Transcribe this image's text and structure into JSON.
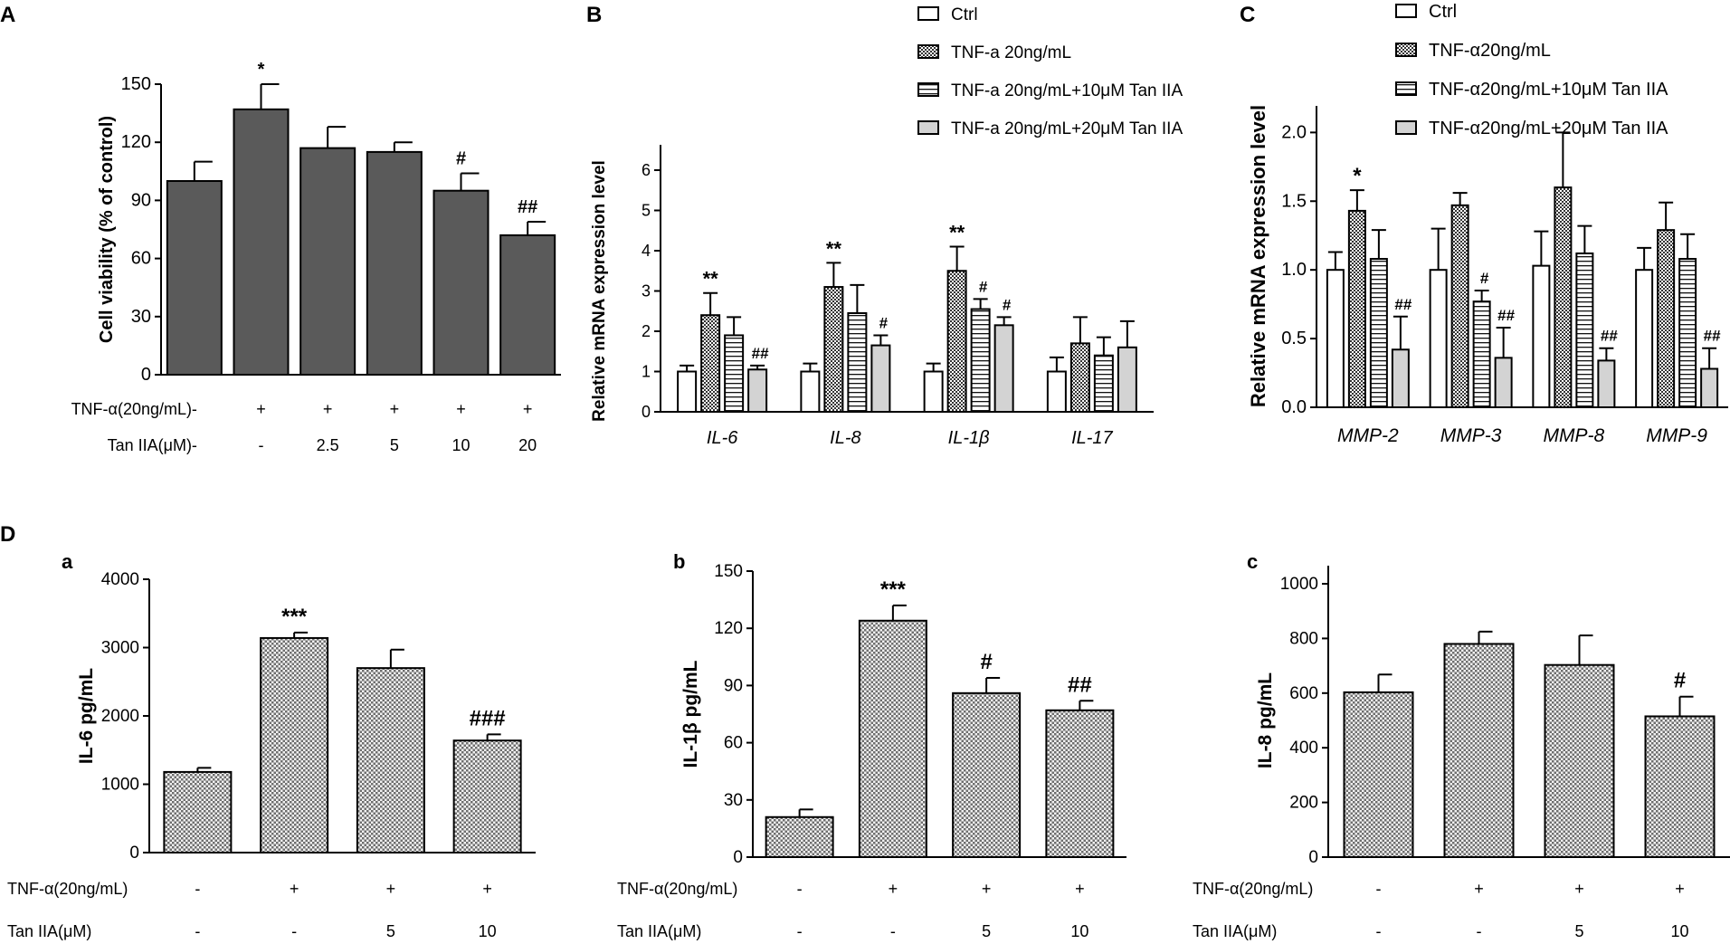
{
  "panel_labels": {
    "A": "A",
    "B": "B",
    "C": "C",
    "D": "D",
    "Da": "a",
    "Db": "b",
    "Dc": "c"
  },
  "colors": {
    "dark_bar": "#5a5a5a",
    "light_bar": "#d3d3d3",
    "axis": "#000000"
  },
  "treatment_labels": {
    "tnf": "TNF-α(20ng/mL)",
    "tan": "Tan IIA(μM)"
  },
  "chart_data": [
    {
      "id": "A",
      "type": "bar",
      "ylabel": "Cell viability (% of control)",
      "ylim": [
        0,
        150
      ],
      "yticks": [
        0,
        30,
        60,
        90,
        120,
        150
      ],
      "values": [
        100,
        137,
        117,
        115,
        95,
        72
      ],
      "errors": [
        10,
        13,
        11,
        5,
        9,
        7
      ],
      "annotations": [
        "",
        "*",
        "",
        "",
        "#",
        "##"
      ],
      "rows": [
        {
          "label": "TNF-α(20ng/mL)",
          "values": [
            "-",
            "+",
            "+",
            "+",
            "+",
            "+"
          ]
        },
        {
          "label": "Tan IIA(μM)",
          "values": [
            "-",
            "-",
            "2.5",
            "5",
            "10",
            "20"
          ]
        }
      ]
    },
    {
      "id": "B",
      "type": "grouped_bar",
      "ylabel": "Relative mRNA expression level",
      "ylim": [
        0,
        6
      ],
      "yticks": [
        0,
        1,
        2,
        3,
        4,
        5,
        6
      ],
      "categories": [
        "IL-6",
        "IL-8",
        "IL-1β",
        "IL-17"
      ],
      "legend": [
        "Ctrl",
        "TNF-a 20ng/mL",
        "TNF-a 20ng/mL+10μM Tan IIA",
        "TNF-a 20ng/mL+20μM Tan IIA"
      ],
      "series": [
        {
          "name": "Ctrl",
          "pattern": "white",
          "values": [
            1.0,
            1.0,
            1.0,
            1.0
          ],
          "errors": [
            0.15,
            0.2,
            0.2,
            0.35
          ],
          "annotations": [
            "",
            "",
            "",
            ""
          ]
        },
        {
          "name": "TNF-a 20ng/mL",
          "pattern": "check",
          "values": [
            2.4,
            3.1,
            3.5,
            1.7
          ],
          "errors": [
            0.55,
            0.6,
            0.6,
            0.65
          ],
          "annotations": [
            "**",
            "**",
            "**",
            ""
          ]
        },
        {
          "name": "TNF-a 20ng/mL+10μM Tan IIA",
          "pattern": "stripe",
          "values": [
            1.9,
            2.45,
            2.55,
            1.4
          ],
          "errors": [
            0.45,
            0.7,
            0.25,
            0.45
          ],
          "annotations": [
            "",
            "",
            "#",
            ""
          ]
        },
        {
          "name": "TNF-a 20ng/mL+20μM Tan IIA",
          "pattern": "gray",
          "values": [
            1.05,
            1.65,
            2.15,
            1.6
          ],
          "errors": [
            0.1,
            0.25,
            0.2,
            0.65
          ],
          "annotations": [
            "##",
            "#",
            "#",
            ""
          ]
        }
      ]
    },
    {
      "id": "C",
      "type": "grouped_bar",
      "ylabel": "Relative mRNA expression level",
      "ylim": [
        0,
        2.2
      ],
      "yticks": [
        0.0,
        0.5,
        1.0,
        1.5,
        2.0
      ],
      "categories": [
        "MMP-2",
        "MMP-3",
        "MMP-8",
        "MMP-9"
      ],
      "legend": [
        "Ctrl",
        "TNF-α20ng/mL",
        "TNF-α20ng/mL+10μM Tan IIA",
        "TNF-α20ng/mL+20μM Tan IIA"
      ],
      "series": [
        {
          "name": "Ctrl",
          "pattern": "white",
          "values": [
            1.0,
            1.0,
            1.03,
            1.0
          ],
          "errors": [
            0.13,
            0.3,
            0.25,
            0.16
          ],
          "annotations": [
            "",
            "",
            "",
            ""
          ]
        },
        {
          "name": "TNF-α20ng/mL",
          "pattern": "check",
          "values": [
            1.43,
            1.47,
            1.6,
            1.29
          ],
          "errors": [
            0.15,
            0.09,
            0.4,
            0.2
          ],
          "annotations": [
            "*",
            "",
            "",
            ""
          ]
        },
        {
          "name": "TNF-α20ng/mL+10μM Tan IIA",
          "pattern": "stripe",
          "values": [
            1.08,
            0.77,
            1.12,
            1.08
          ],
          "errors": [
            0.21,
            0.08,
            0.2,
            0.18
          ],
          "annotations": [
            "",
            "#",
            "",
            ""
          ]
        },
        {
          "name": "TNF-α20ng/mL+20μM Tan IIA",
          "pattern": "gray",
          "values": [
            0.42,
            0.36,
            0.34,
            0.28
          ],
          "errors": [
            0.24,
            0.22,
            0.09,
            0.15
          ],
          "annotations": [
            "##",
            "##",
            "##",
            "##"
          ]
        }
      ]
    },
    {
      "id": "Da",
      "type": "bar",
      "ylabel": "IL-6 pg/mL",
      "ylim": [
        0,
        4000
      ],
      "yticks": [
        0,
        1000,
        2000,
        3000,
        4000
      ],
      "values": [
        1180,
        3140,
        2700,
        1640
      ],
      "errors": [
        60,
        80,
        270,
        90
      ],
      "annotations": [
        "",
        "***",
        "",
        "###"
      ],
      "rows": [
        {
          "label": "TNF-α(20ng/mL)",
          "values": [
            "-",
            "+",
            "+",
            "+"
          ]
        },
        {
          "label": "Tan IIA(μM)",
          "values": [
            "-",
            "-",
            "5",
            "10"
          ]
        }
      ]
    },
    {
      "id": "Db",
      "type": "bar",
      "ylabel": "IL-1β pg/mL",
      "ylim": [
        0,
        150
      ],
      "yticks": [
        0,
        30,
        60,
        90,
        120,
        150
      ],
      "values": [
        21,
        124,
        86,
        77
      ],
      "errors": [
        4,
        8,
        8,
        5
      ],
      "annotations": [
        "",
        "***",
        "#",
        "##"
      ],
      "rows": [
        {
          "label": "TNF-α(20ng/mL)",
          "values": [
            "-",
            "+",
            "+",
            "+"
          ]
        },
        {
          "label": "Tan IIA(μM)",
          "values": [
            "-",
            "-",
            "5",
            "10"
          ]
        }
      ]
    },
    {
      "id": "Dc",
      "type": "bar",
      "ylabel": "IL-8 pg/mL",
      "ylim": [
        0,
        1000
      ],
      "yticks": [
        0,
        200,
        400,
        600,
        800,
        1000
      ],
      "values": [
        603,
        780,
        703,
        515
      ],
      "errors": [
        65,
        45,
        108,
        72
      ],
      "annotations": [
        "",
        "",
        "",
        "#"
      ],
      "rows": [
        {
          "label": "TNF-α(20ng/mL)",
          "values": [
            "-",
            "+",
            "+",
            "+"
          ]
        },
        {
          "label": "Tan IIA(μM)",
          "values": [
            "-",
            "-",
            "5",
            "10"
          ]
        }
      ]
    }
  ]
}
